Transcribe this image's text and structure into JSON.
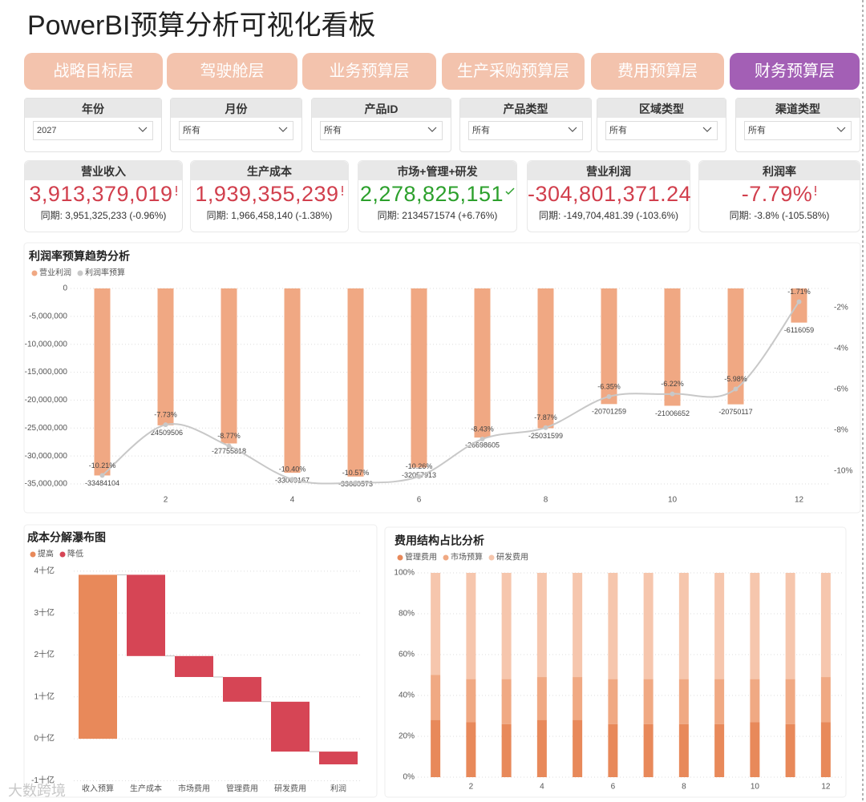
{
  "title": "PowerBI预算分析可视化看板",
  "tabs": {
    "items": [
      "战略目标层",
      "驾驶舱层",
      "业务预算层",
      "生产采购预算层",
      "费用预算层",
      "财务预算层"
    ],
    "active": 5
  },
  "filters": [
    {
      "label": "年份",
      "value": "2027"
    },
    {
      "label": "月份",
      "value": "所有"
    },
    {
      "label": "产品ID",
      "value": "所有"
    },
    {
      "label": "产品类型",
      "value": "所有"
    },
    {
      "label": "区域类型",
      "value": "所有"
    },
    {
      "label": "渠道类型",
      "value": "所有"
    }
  ],
  "kpis": [
    {
      "label": "营业收入",
      "value": "3,913,379,019",
      "compare": "同期: 3,951,325,233 (-0.96%)",
      "color": "#d13f4d",
      "icon": "warning"
    },
    {
      "label": "生产成本",
      "value": "1,939,355,239",
      "compare": "同期: 1,966,458,140 (-1.38%)",
      "color": "#d13f4d",
      "icon": "warning"
    },
    {
      "label": "市场+管理+研发",
      "value": "2,278,825,151",
      "compare": "同期: 2134571574 (+6.76%)",
      "color": "#2ca02c",
      "icon": "check"
    },
    {
      "label": "营业利润",
      "value": "-304,801,371.24",
      "compare": "同期: -149,704,481.39 (-103.6%)",
      "color": "#d13f4d"
    },
    {
      "label": "利润率",
      "value": "-7.79%",
      "compare": "同期: -3.8% (-105.58%)",
      "color": "#d13f4d",
      "icon": "warning"
    }
  ],
  "chart_data": [
    {
      "type": "combo",
      "title": "利润率预算趋势分析",
      "x": [
        1,
        2,
        3,
        4,
        5,
        6,
        7,
        8,
        9,
        10,
        11,
        12
      ],
      "xlim": [
        0.5,
        12.5
      ],
      "xticks": [
        2,
        4,
        6,
        8,
        10,
        12
      ],
      "ylim": [
        -35860000,
        0
      ],
      "yticks": [
        0,
        {
          "value": -5000000,
          "label": "-5,000,000"
        },
        {
          "value": -10000000,
          "label": "-10,000,000"
        },
        {
          "value": -15000000,
          "label": "-15,000,000"
        },
        {
          "value": -20000000,
          "label": "-20,000,000"
        },
        {
          "value": -25000000,
          "label": "-25,000,000"
        },
        {
          "value": -30000000,
          "label": "-30,000,000"
        },
        {
          "value": -35000000,
          "label": "-35,000,000"
        }
      ],
      "y2lim": [
        -10.86,
        -1.06
      ],
      "y2ticks": [
        {
          "value": -2,
          "label": "-2%"
        },
        {
          "value": -4,
          "label": "-4%"
        },
        {
          "value": -6,
          "label": "-6%"
        },
        {
          "value": -8,
          "label": "-8%"
        },
        {
          "value": -10,
          "label": "-10%"
        }
      ],
      "grid": true,
      "series": [
        {
          "name": "营业利润",
          "type": "bar",
          "color": "#f0a883",
          "values": [
            -33484104,
            -24509506,
            -27755818,
            -33009167,
            -33680573,
            -32057913,
            -26698605,
            -25031599,
            -20701259,
            -21006652,
            -20750117,
            -6116059
          ]
        },
        {
          "name": "利润率预算",
          "type": "line",
          "axis": "y2",
          "color": "#c8c8c8",
          "values": [
            -10.21,
            -7.73,
            -8.77,
            -10.4,
            -10.57,
            -10.26,
            -8.43,
            -7.87,
            -6.35,
            -6.22,
            -5.98,
            -1.71
          ],
          "value_labels": [
            "-10.21%",
            "-7.73%",
            "-8.77%",
            "-10.40%",
            "-10.57%",
            "-10.26%",
            "-8.43%",
            "-7.87%",
            "-6.35%",
            "-6.22%",
            "-5.98%",
            "-1.71%"
          ]
        }
      ]
    },
    {
      "type": "waterfall",
      "title": "成本分解瀑布图",
      "categories": [
        "收入预算",
        "生产成本",
        "市场费用",
        "管理费用",
        "研发费用",
        "利润"
      ],
      "values": [
        3913379019,
        -1939355239,
        -500000000,
        -590000000,
        -1190000000,
        -304801371
      ],
      "ylim": [
        -1050000000,
        4150000000
      ],
      "yticks": [
        {
          "value": 4000000000,
          "label": "4十亿"
        },
        {
          "value": 3000000000,
          "label": "3十亿"
        },
        {
          "value": 2000000000,
          "label": "2十亿"
        },
        {
          "value": 1000000000,
          "label": "1十亿"
        },
        {
          "value": 0,
          "label": "0十亿"
        },
        {
          "value": -1000000000,
          "label": "-1十亿"
        }
      ],
      "legend": [
        {
          "name": "提高",
          "color": "#e8895a"
        },
        {
          "name": "降低",
          "color": "#d64555"
        }
      ],
      "grid": true
    },
    {
      "type": "stacked_bar_100",
      "title": "费用结构占比分析",
      "x": [
        1,
        2,
        3,
        4,
        5,
        6,
        7,
        8,
        9,
        10,
        11,
        12
      ],
      "xlim": [
        0.5,
        12.5
      ],
      "xticks": [
        2,
        4,
        6,
        8,
        10,
        12
      ],
      "ylim": [
        0,
        100
      ],
      "yticks": [
        {
          "value": 0,
          "label": "0%"
        },
        {
          "value": 20,
          "label": "20%"
        },
        {
          "value": 40,
          "label": "40%"
        },
        {
          "value": 60,
          "label": "60%"
        },
        {
          "value": 80,
          "label": "80%"
        },
        {
          "value": 100,
          "label": "100%"
        }
      ],
      "grid": true,
      "series": [
        {
          "name": "管理费用",
          "color": "#e8895a",
          "values": [
            28,
            27,
            26,
            28,
            28,
            26,
            26,
            26,
            26,
            27,
            26,
            27
          ]
        },
        {
          "name": "市场预算",
          "color": "#f0a983",
          "values": [
            22,
            21,
            22,
            21,
            21,
            22,
            22,
            22,
            22,
            21,
            22,
            22
          ]
        },
        {
          "name": "研发费用",
          "color": "#f6c6ad",
          "values": [
            50,
            52,
            52,
            51,
            51,
            52,
            52,
            52,
            52,
            52,
            52,
            51
          ]
        }
      ]
    }
  ],
  "watermark": "大数跨境"
}
